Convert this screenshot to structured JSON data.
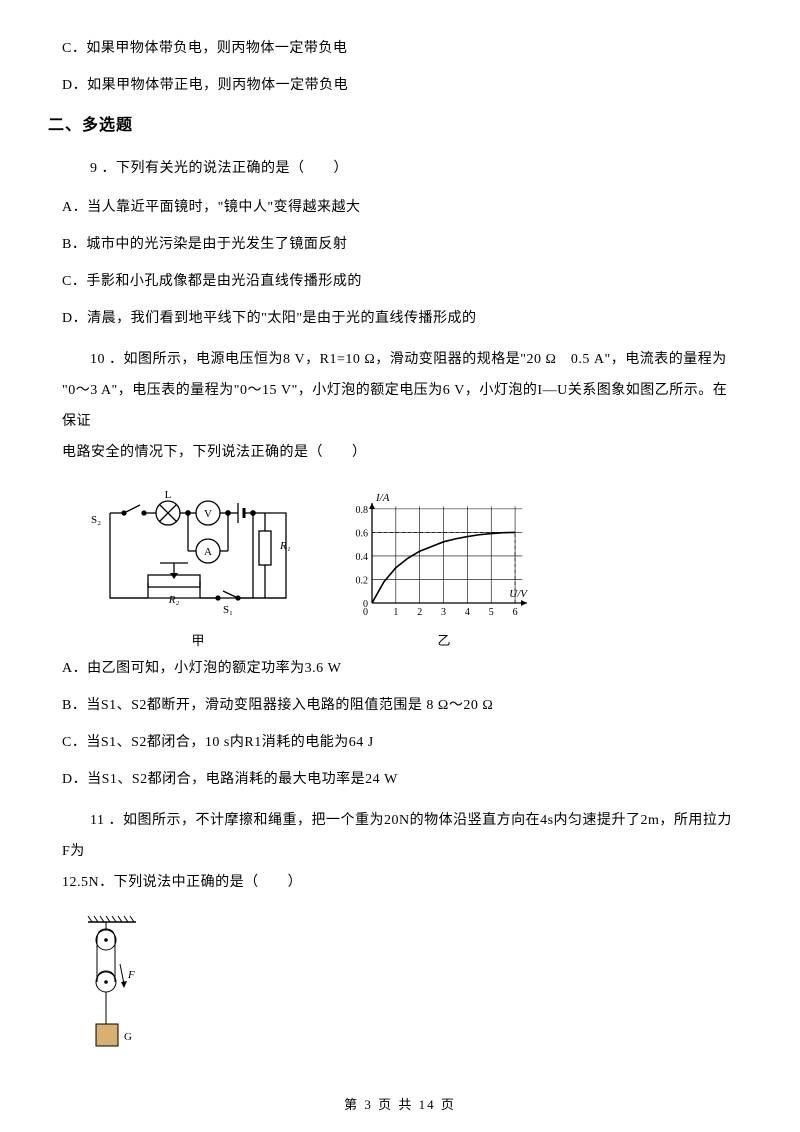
{
  "q8": {
    "c": "C．如果甲物体带负电，则丙物体一定带负电",
    "d": "D．如果甲物体带正电，则丙物体一定带负电"
  },
  "section2_title": "二、多选题",
  "q9": {
    "stem": "9 ．下列有关光的说法正确的是（　　）",
    "a": "A．当人靠近平面镜时，\"镜中人\"变得越来越大",
    "b": "B．城市中的光污染是由于光发生了镜面反射",
    "c": "C．手影和小孔成像都是由光沿直线传播形成的",
    "d": "D．清晨，我们看到地平线下的\"太阳\"是由于光的直线传播形成的"
  },
  "q10": {
    "stem_l1": "10 ．如图所示，电源电压恒为8 V，R1=10 Ω，滑动变阻器的规格是\"20 Ω　0.5 A\"，电流表的量程为",
    "stem_l2": "\"0～3 A\"，电压表的量程为\"0～15 V\"，小灯泡的额定电压为6 V，小灯泡的I—U关系图象如图乙所示。在保证",
    "stem_l3": "电路安全的情况下，下列说法正确的是（　　）",
    "a": "A．由乙图可知，小灯泡的额定功率为3.6 W",
    "b": "B．当S1、S2都断开，滑动变阻器接入电路的阻值范围是 8 Ω～20 Ω",
    "c": "C．当S1、S2都闭合，10 s内R1消耗的电能为64 J",
    "d": "D．当S1、S2都闭合，电路消耗的最大电功率是24 W",
    "circuit": {
      "labels": {
        "L": "L",
        "V": "V",
        "A": "A",
        "R1": "R₁",
        "R2": "R₂",
        "S1": "S₁",
        "S2": "S₂"
      },
      "color": "#000000",
      "stroke_width": 1.3,
      "caption": "甲"
    },
    "graph": {
      "ylabel": "I/A",
      "xlabel": "U/V",
      "y_ticks": [
        "0",
        "0.2",
        "0.4",
        "0.6",
        "0.8"
      ],
      "x_ticks": [
        "0",
        "1",
        "2",
        "3",
        "4",
        "5",
        "6"
      ],
      "xlim": [
        0,
        6.5
      ],
      "ylim": [
        0,
        0.85
      ],
      "curve_points": [
        [
          0,
          0
        ],
        [
          0.5,
          0.18
        ],
        [
          1,
          0.3
        ],
        [
          1.5,
          0.38
        ],
        [
          2,
          0.44
        ],
        [
          2.5,
          0.48
        ],
        [
          3,
          0.52
        ],
        [
          3.5,
          0.545
        ],
        [
          4,
          0.565
        ],
        [
          4.5,
          0.58
        ],
        [
          5,
          0.59
        ],
        [
          5.5,
          0.598
        ],
        [
          6,
          0.6
        ]
      ],
      "grid_color": "#000000",
      "curve_color": "#000000",
      "bg": "#ffffff",
      "stroke_width": 1.1,
      "caption": "乙"
    }
  },
  "q11": {
    "stem_l1": "11 ．如图所示，不计摩擦和绳重，把一个重为20N的物体沿竖直方向在4s内匀速提升了2m，所用拉力F为",
    "stem_l2": "12.5N．下列说法中正确的是（　　）",
    "pulley": {
      "F_label": "F",
      "G_label": "G",
      "color": "#000000",
      "block_fill": "#d8b070"
    }
  },
  "footer": {
    "text": "第 3 页 共 14 页"
  }
}
